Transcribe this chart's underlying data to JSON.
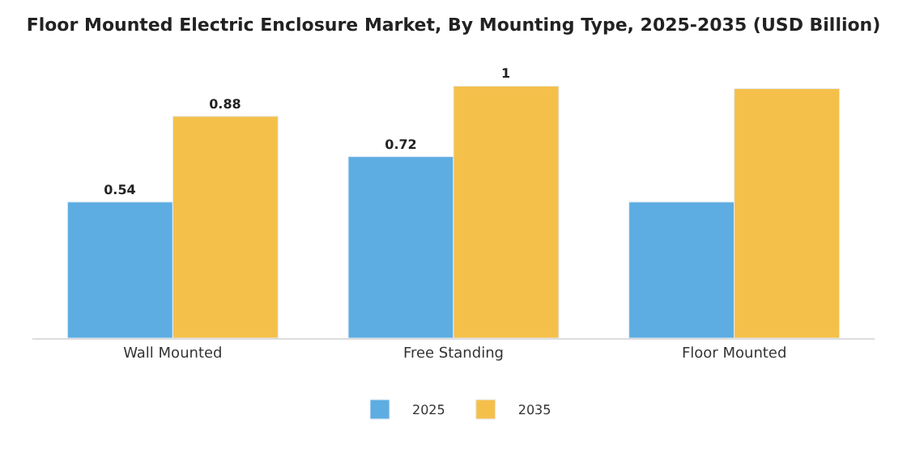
{
  "chart_data": {
    "type": "bar",
    "title": "Floor Mounted Electric Enclosure Market, By Mounting Type, 2025-2035 (USD Billion)",
    "categories": [
      "Wall Mounted",
      "Free Standing",
      "Floor Mounted"
    ],
    "series": [
      {
        "name": "2025",
        "color": "#5dade2",
        "values": [
          0.54,
          0.72,
          0.54
        ],
        "value_labels": [
          "0.54",
          "0.72",
          null
        ]
      },
      {
        "name": "2035",
        "color": "#f5c04a",
        "values": [
          0.88,
          1,
          0.99
        ],
        "value_labels": [
          "0.88",
          "1",
          null
        ]
      }
    ],
    "legend": "bottom"
  }
}
